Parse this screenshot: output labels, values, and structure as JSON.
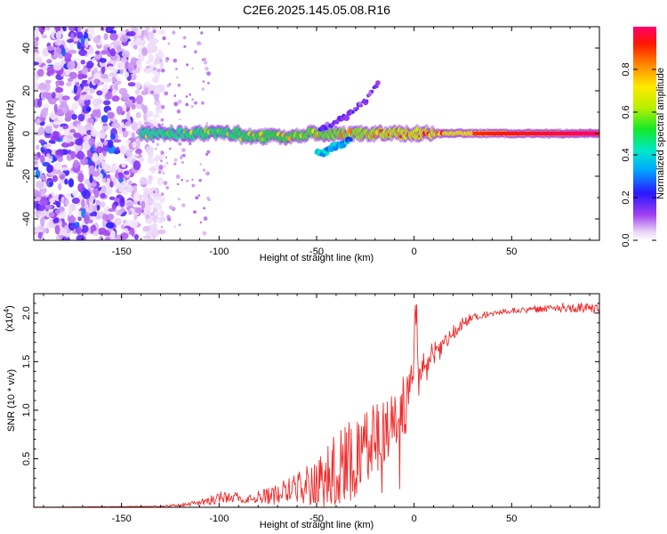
{
  "figure_title": "C2E6.2025.145.05.08.R16",
  "chart_data": [
    {
      "type": "heatmap",
      "title": "C2E6.2025.145.05.08.R16",
      "xlabel": "Height of straight line (km)",
      "ylabel": "Frequency (Hz)",
      "xlim": [
        -195,
        95
      ],
      "ylim": [
        -50,
        50
      ],
      "x_ticks": [
        -150,
        -100,
        -50,
        0,
        50
      ],
      "y_ticks": [
        -40,
        -20,
        0,
        20,
        40
      ],
      "colorbar": {
        "label": "Normalized spectral amplitude",
        "range": [
          0,
          1
        ],
        "ticks": [
          0.0,
          0.2,
          0.4,
          0.6,
          0.8
        ],
        "tick_labels": [
          "0.0",
          "0.2",
          "0.4",
          "0.6",
          "0.8"
        ]
      },
      "features": [
        {
          "name": "noise region",
          "x_range": [
            -195,
            -135
          ],
          "freq_range": [
            -50,
            50
          ],
          "amplitude": 0.15
        },
        {
          "name": "central band",
          "x_range": [
            -140,
            95
          ],
          "freq_center": 0,
          "amplitude_start": 0.4,
          "amplitude_end": 1.0
        },
        {
          "name": "rising trace",
          "x_points": [
            -48,
            -35,
            -25,
            -18
          ],
          "freq_points": [
            2,
            8,
            15,
            25
          ],
          "amplitude": 0.15
        },
        {
          "name": "dipping trace",
          "x_points": [
            -50,
            -40,
            -32
          ],
          "freq_points": [
            -10,
            -6,
            -2
          ],
          "amplitude": 0.2
        }
      ],
      "grid": false
    },
    {
      "type": "line",
      "xlabel": "Height of straight line (km)",
      "ylabel": "SNR (10 * v/v)",
      "y_multiplier_label": "(x10",
      "y_multiplier_exp": "4",
      "xlim": [
        -195,
        95
      ],
      "ylim": [
        0,
        2.2
      ],
      "x_ticks": [
        -150,
        -100,
        -50,
        0,
        50
      ],
      "y_ticks": [
        0.5,
        1.0,
        1.5,
        2.0
      ],
      "y_tick_labels": [
        "0.5",
        "1.0",
        "1.5",
        "2.0"
      ],
      "series_color": "#ee2b2b",
      "envelope": {
        "x": [
          -195,
          -130,
          -115,
          -105,
          -95,
          -80,
          -70,
          -60,
          -50,
          -45,
          -40,
          -35,
          -30,
          -25,
          -20,
          -15,
          -10,
          -5,
          -1,
          1,
          2,
          4,
          8,
          15,
          20,
          25,
          30,
          40,
          50,
          60,
          70,
          80,
          95
        ],
        "y": [
          0.0,
          0.01,
          0.03,
          0.07,
          0.12,
          0.1,
          0.14,
          0.2,
          0.26,
          0.3,
          0.36,
          0.45,
          0.55,
          0.64,
          0.7,
          0.78,
          0.88,
          1.02,
          1.3,
          2.12,
          1.3,
          1.42,
          1.5,
          1.68,
          1.8,
          1.9,
          1.96,
          2.0,
          2.02,
          2.04,
          2.05,
          2.06,
          2.04
        ]
      },
      "spread": {
        "x": [
          -195,
          -130,
          -110,
          -100,
          -80,
          -60,
          -50,
          -40,
          -30,
          -20,
          -10,
          -2,
          2,
          10,
          20,
          30,
          50,
          95
        ],
        "y": [
          0.0,
          0.005,
          0.03,
          0.06,
          0.07,
          0.15,
          0.25,
          0.4,
          0.45,
          0.35,
          0.3,
          0.4,
          0.25,
          0.15,
          0.08,
          0.04,
          0.03,
          0.06
        ]
      },
      "grid": false
    }
  ]
}
